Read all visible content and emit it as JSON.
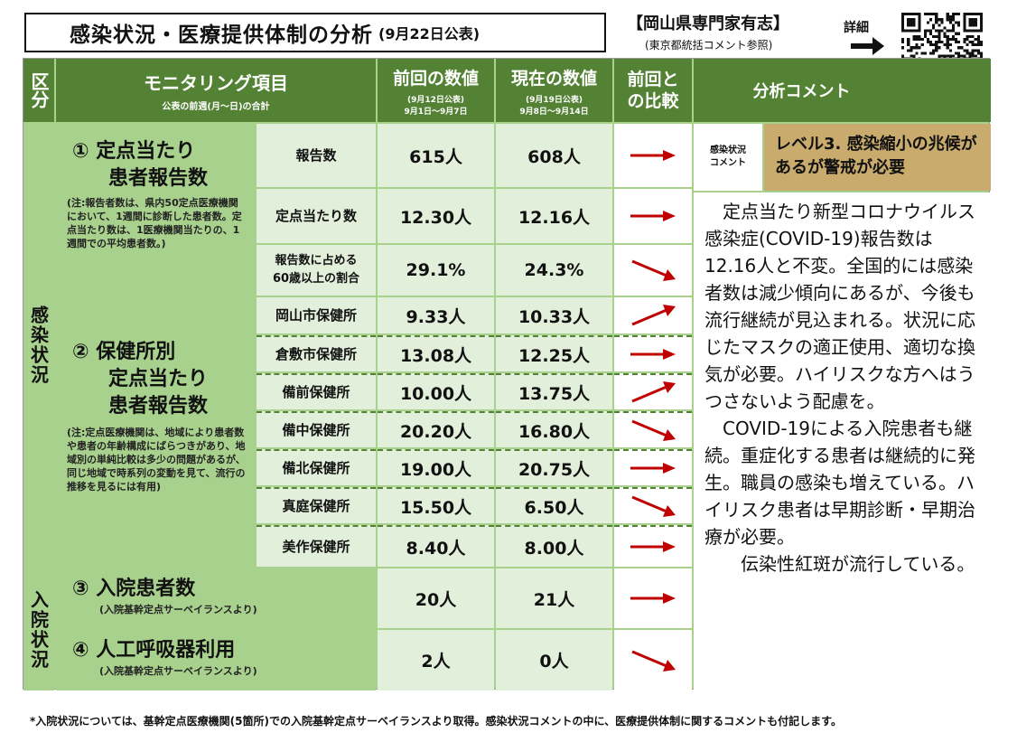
{
  "header": {
    "title": "感染状況・医療提供体制の分析",
    "title_date": "(9月22日公表)",
    "expert": "【岡山県専門家有志】",
    "expert_sub": "(東京都統括コメント参照)",
    "detail_label": "詳細"
  },
  "columns": {
    "category": "区分",
    "item": "モニタリング項目",
    "item_sub": "公表の前週(月～日)の合計",
    "prev": "前回の数値",
    "prev_sub1": "(9月12日公表)",
    "prev_sub2": "9月1日～9月7日",
    "curr": "現在の数値",
    "curr_sub1": "(9月19日公表)",
    "curr_sub2": "9月8日～9月14日",
    "compare": "前回と\nの比較",
    "comment": "分析コメント"
  },
  "categories": {
    "infection": "感染状況",
    "hospital": "入院状況"
  },
  "section1": {
    "title_line1": "① 定点当たり",
    "title_line2": "患者報告数",
    "note": "(注:報告者数は、県内50定点医療機関において、1週間に診断した患者数。定点当たり数は、1医療機関当たりの、1週間での平均患者数。)"
  },
  "section2": {
    "title_line1": "② 保健所別",
    "title_line2": "定点当たり",
    "title_line3": "患者報告数",
    "note": "(注:定点医療機関は、地域により患者数や患者の年齢構成にばらつきがあり、地域別の単純比較は多少の問題があるが、同じ地域で時系列の変動を見て、流行の推移を見るには有用)"
  },
  "section3": {
    "title": "③ 入院患者数",
    "note": "(入院基幹定点サーベイランスより)"
  },
  "section4": {
    "title": "④ 人工呼吸器利用",
    "note": "(入院基幹定点サーベイランスより)"
  },
  "rows": [
    {
      "label": "報告数",
      "prev": "615人",
      "curr": "608人",
      "trend": "flat"
    },
    {
      "label": "定点当たり数",
      "prev": "12.30人",
      "curr": "12.16人",
      "trend": "flat"
    },
    {
      "label": "報告数に占める\n60歳以上の割合",
      "prev": "29.1%",
      "curr": "24.3%",
      "trend": "down"
    },
    {
      "label": "岡山市保健所",
      "prev": "9.33人",
      "curr": "10.33人",
      "trend": "up"
    },
    {
      "label": "倉敷市保健所",
      "prev": "13.08人",
      "curr": "12.25人",
      "trend": "flat"
    },
    {
      "label": "備前保健所",
      "prev": "10.00人",
      "curr": "13.75人",
      "trend": "up"
    },
    {
      "label": "備中保健所",
      "prev": "20.20人",
      "curr": "16.80人",
      "trend": "down"
    },
    {
      "label": "備北保健所",
      "prev": "19.00人",
      "curr": "20.75人",
      "trend": "flat"
    },
    {
      "label": "真庭保健所",
      "prev": "15.50人",
      "curr": "6.50人",
      "trend": "down"
    },
    {
      "label": "美作保健所",
      "prev": "8.40人",
      "curr": "8.00人",
      "trend": "flat"
    },
    {
      "label": "",
      "prev": "20人",
      "curr": "21人",
      "trend": "flat"
    },
    {
      "label": "",
      "prev": "2人",
      "curr": "0人",
      "trend": "down"
    }
  ],
  "status": {
    "label": "感染状況\nコメント",
    "level": "レベル3. 感染縮小の兆候があるが警戒が必要",
    "level_color": "#c9ab6e"
  },
  "commentary": "　定点当たり新型コロナウイルス感染症(COVID-19)報告数は12.16人と不変。全国的には感染者数は減少傾向にあるが、今後も流行継続が見込まれる。状況に応じたマスクの適正使用、適切な換気が必要。ハイリスクな方へはうつさないよう配慮を。\n　COVID-19による入院患者も継続。重症化する患者は継続的に発生。職員の感染も増えている。ハイリスク患者は早期診断・早期治療が必要。\n　　伝染性紅斑が流行している。",
  "footnote": "*入院状況については、基幹定点医療機関(5箇所)での入院基幹定点サーベイランスより取得。感染状況コメントの中に、医療提供体制に関するコメントも付記します。",
  "colors": {
    "header_green": "#548235",
    "mid_green": "#a9d18e",
    "light_green": "#e2efda",
    "arrow_red": "#c00000"
  },
  "icons": {
    "trend_flat": "arrow-right-icon",
    "trend_up": "arrow-up-right-icon",
    "trend_down": "arrow-down-right-icon",
    "detail": "arrow-right-icon",
    "qr": "qr-code-icon"
  }
}
